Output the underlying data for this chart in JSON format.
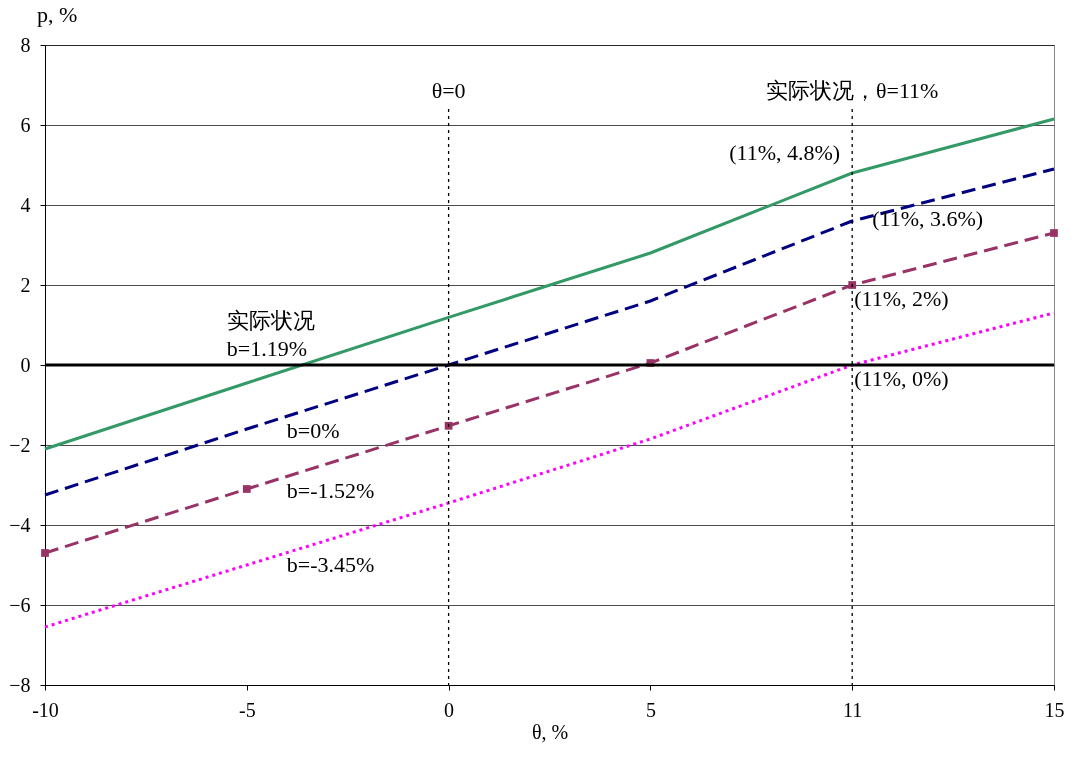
{
  "chart_data": {
    "type": "line",
    "xlabel": "θ, %",
    "ylabel": "p, %",
    "categories": [
      "-10",
      "-5",
      "0",
      "5",
      "11",
      "15"
    ],
    "series": [
      {
        "name": "实际状况\nb=1.19%",
        "color": "#339966",
        "values": [
          -2.1,
          -0.45,
          1.19,
          2.8,
          4.8,
          6.15
        ],
        "line_style": "solid"
      },
      {
        "name": "b=0%",
        "color": "#000080",
        "values": [
          -3.25,
          -1.6,
          0,
          1.6,
          3.6,
          4.9
        ],
        "line_style": "dashed"
      },
      {
        "name": "b=-1.52%",
        "color": "#993366",
        "values": [
          -4.7,
          -3.1,
          -1.52,
          0.05,
          2,
          3.3
        ],
        "line_style": "dashed",
        "marker": "square"
      },
      {
        "name": "b=-3.45%",
        "color": "#ff00ff",
        "values": [
          -6.55,
          -5.0,
          -3.45,
          -1.85,
          0,
          1.3
        ],
        "line_style": "dotted"
      }
    ],
    "ylim": [
      -8,
      8
    ],
    "yticks": [
      -8,
      -6,
      -4,
      -2,
      0,
      2,
      4,
      6,
      8
    ],
    "grid": "y",
    "ref_lines": [
      {
        "axis": "x",
        "value": "0",
        "label": "θ=0",
        "color": "#000000",
        "line_style": "dotted"
      },
      {
        "axis": "x",
        "value": "11",
        "label": "实际状况，θ=11%",
        "color": "#000000",
        "line_style": "dotted"
      },
      {
        "axis": "y",
        "value": 0,
        "label": null,
        "color": "#000000",
        "line_style": "solid"
      }
    ],
    "annotations": [
      {
        "text": "(11%, 4.8%)",
        "x": "11",
        "y": 4.8
      },
      {
        "text": "(11%, 3.6%)",
        "x": "11",
        "y": 3.6
      },
      {
        "text": "(11%, 2%)",
        "x": "11",
        "y": 2
      },
      {
        "text": "(11%, 0%)",
        "x": "11",
        "y": 0
      }
    ]
  }
}
